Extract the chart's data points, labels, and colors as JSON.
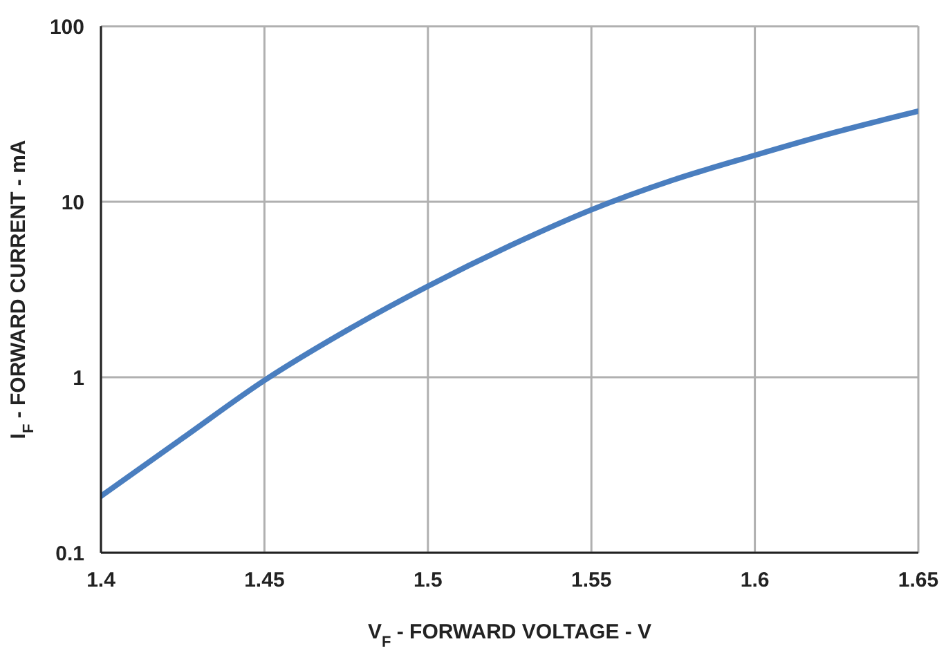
{
  "chart_data": {
    "type": "line",
    "xlabel": "V$_{F}$ - FORWARD VOLTAGE - V",
    "ylabel": "I$_{F}$ - FORWARD CURRENT - mA",
    "log": "y",
    "grid": true,
    "marker": "none",
    "line_style": "solid",
    "x": [
      1.4,
      1.425,
      1.45,
      1.475,
      1.5,
      1.525,
      1.55,
      1.575,
      1.6,
      1.625,
      1.65
    ],
    "series": [
      {
        "color": "#4a7ebf",
        "values": [
          0.21,
          0.45,
          0.96,
          1.84,
          3.3,
          5.6,
          9.0,
          13.3,
          18.4,
          25,
          32.8
        ]
      }
    ],
    "xlim": [
      1.4,
      1.65
    ],
    "xticks": [
      1.4,
      1.45,
      1.5,
      1.55,
      1.6,
      1.65
    ],
    "ylim": [
      0.1,
      100
    ],
    "yticks": [
      0.1,
      1,
      10,
      100
    ]
  }
}
